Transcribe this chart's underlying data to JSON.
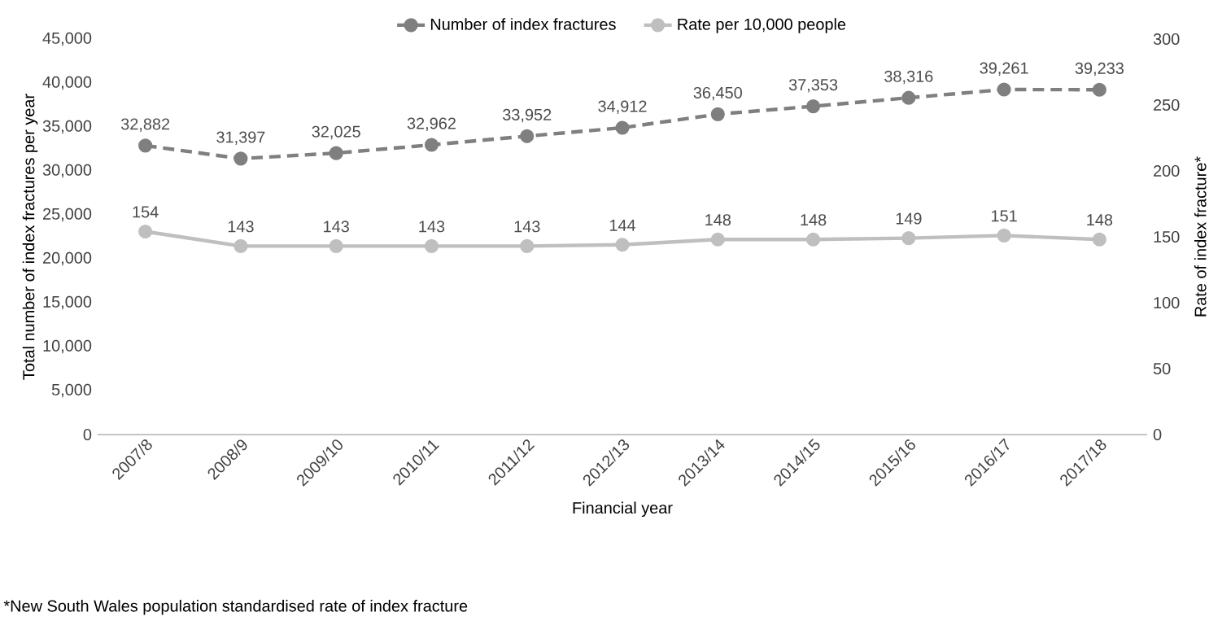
{
  "chart_data": {
    "type": "line",
    "xlabel": "Financial year",
    "ylabel": "Total number of index fractures per year",
    "y2label": "Rate of index fracture*",
    "categories": [
      "2007/8",
      "2008/9",
      "2009/10",
      "2010/11",
      "2011/12",
      "2012/13",
      "2013/14",
      "2014/15",
      "2015/16",
      "2016/17",
      "2017/18"
    ],
    "series": [
      {
        "name": "Number of index fractures",
        "color": "#7f7f7f",
        "line_style": "dashed",
        "values": [
          32882,
          31397,
          32025,
          32962,
          33952,
          34912,
          36450,
          37353,
          38316,
          39261,
          39233
        ],
        "value_labels": [
          "32,882",
          "31,397",
          "32,025",
          "32,962",
          "33,952",
          "34,912",
          "36,450",
          "37,353",
          "38,316",
          "39,261",
          "39,233"
        ]
      },
      {
        "name": "Rate per 10,000 people",
        "color": "#bfbfbf",
        "line_style": "solid",
        "axis": "y2",
        "values": [
          154,
          143,
          143,
          143,
          143,
          144,
          148,
          148,
          149,
          151,
          148
        ],
        "value_labels": [
          "154",
          "143",
          "143",
          "143",
          "143",
          "144",
          "148",
          "148",
          "149",
          "151",
          "148"
        ]
      }
    ],
    "ylim": [
      0,
      45000
    ],
    "yticks": [
      {
        "value": 0,
        "label": "0"
      },
      {
        "value": 5000,
        "label": "5,000"
      },
      {
        "value": 10000,
        "label": "10,000"
      },
      {
        "value": 15000,
        "label": "15,000"
      },
      {
        "value": 20000,
        "label": "20,000"
      },
      {
        "value": 25000,
        "label": "25,000"
      },
      {
        "value": 30000,
        "label": "30,000"
      },
      {
        "value": 35000,
        "label": "35,000"
      },
      {
        "value": 40000,
        "label": "40,000"
      },
      {
        "value": 45000,
        "label": "45,000"
      }
    ],
    "y2lim": [
      0,
      300
    ],
    "y2ticks": [
      0,
      50,
      100,
      150,
      200,
      250,
      300
    ],
    "marker": "circle",
    "legend": "top",
    "grid": false,
    "annotations": [
      "*New South Wales population standardised rate of index fracture"
    ]
  }
}
